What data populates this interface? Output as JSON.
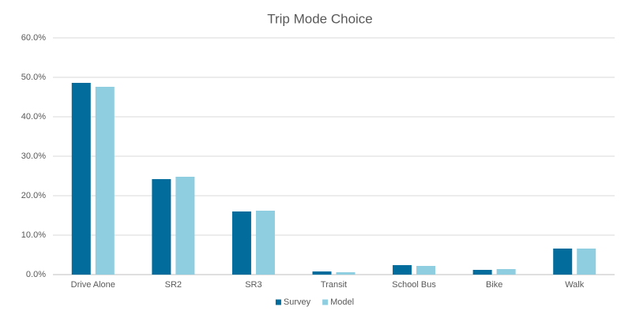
{
  "chart_data": {
    "type": "bar",
    "title": "Trip Mode Choice",
    "categories": [
      "Drive Alone",
      "SR2",
      "SR3",
      "Transit",
      "School Bus",
      "Bike",
      "Walk"
    ],
    "series": [
      {
        "name": "Survey",
        "color": "#026c9c",
        "values": [
          48.6,
          24.2,
          16.0,
          0.8,
          2.4,
          1.2,
          6.6
        ]
      },
      {
        "name": "Model",
        "color": "#8fcde0",
        "values": [
          47.6,
          24.8,
          16.2,
          0.6,
          2.2,
          1.4,
          6.6
        ]
      }
    ],
    "ylim": [
      0,
      60
    ],
    "yticks": [
      {
        "value": 0,
        "label": "0.0%"
      },
      {
        "value": 10,
        "label": "10.0%"
      },
      {
        "value": 20,
        "label": "20.0%"
      },
      {
        "value": 30,
        "label": "30.0%"
      },
      {
        "value": 40,
        "label": "40.0%"
      },
      {
        "value": 50,
        "label": "50.0%"
      },
      {
        "value": 60,
        "label": "60.0%"
      }
    ],
    "grid": true,
    "legend": "bottom"
  }
}
